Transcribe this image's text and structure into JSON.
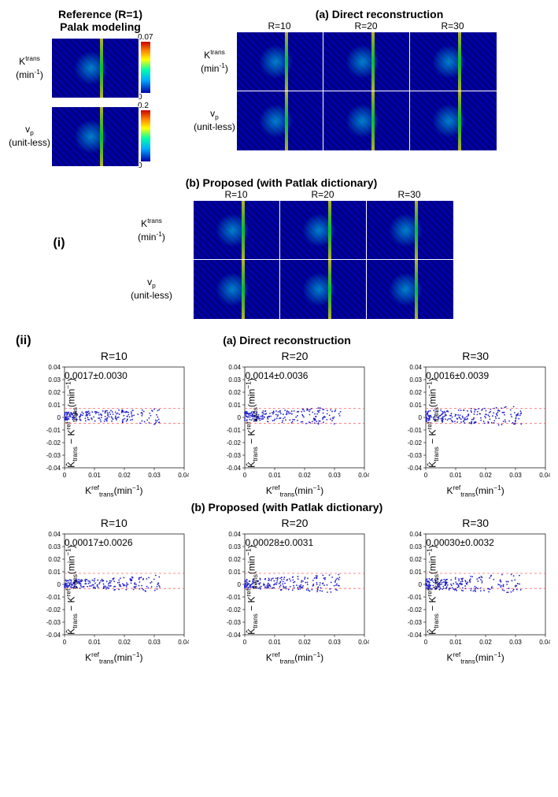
{
  "section_i": {
    "tag": "(i)",
    "reference": {
      "title_line1": "Reference (R=1)",
      "title_line2": "Palak modeling",
      "rows": [
        {
          "label_html": "K<sup>trans</sup><br>(min<sup>-1</sup>)",
          "colorbar": {
            "min": 0,
            "max": 0.07
          }
        },
        {
          "label_html": "v<sub>p</sub><br>(unit-less)",
          "colorbar": {
            "min": 0,
            "max": 0.2
          }
        }
      ]
    },
    "panels": [
      {
        "title": "(a) Direct reconstruction",
        "cols": [
          "R=10",
          "R=20",
          "R=30"
        ],
        "row_labels": [
          "K<sup>trans</sup><br>(min<sup>-1</sup>)",
          "v<sub>p</sub><br>(unit-less)"
        ]
      },
      {
        "title": "(b) Proposed (with Patlak dictionary)",
        "cols": [
          "R=10",
          "R=20",
          "R=30"
        ],
        "row_labels": [
          "K<sup>trans</sup><br>(min<sup>-1</sup>)",
          "v<sub>p</sub><br>(unit-less)"
        ]
      }
    ]
  },
  "section_ii": {
    "tag": "(ii)",
    "groups": [
      {
        "title": "(a) Direct reconstruction",
        "plots": [
          {
            "subtitle": "R=10",
            "stat": "0.0017±0.0030"
          },
          {
            "subtitle": "R=20",
            "stat": "0.0014±0.0036"
          },
          {
            "subtitle": "R=30",
            "stat": "0.0016±0.0039"
          }
        ]
      },
      {
        "title": "(b) Proposed (with Patlak dictionary)",
        "plots": [
          {
            "subtitle": "R=10",
            "stat": "0.00017±0.0026"
          },
          {
            "subtitle": "R=20",
            "stat": "0.00028±0.0031"
          },
          {
            "subtitle": "R=30",
            "stat": "0.00030±0.0032"
          }
        ]
      }
    ],
    "axis": {
      "x_ticks": [
        0,
        0.01,
        0.02,
        0.03,
        0.04
      ],
      "y_ticks": [
        -0.04,
        -0.03,
        -0.02,
        -0.01,
        0,
        0.01,
        0.02,
        0.03,
        0.04
      ],
      "xlim": [
        0,
        0.04
      ],
      "ylim": [
        -0.04,
        0.04
      ],
      "xlabel_html": "K<sup>ref</sup><sub>trans</sub>(min<sup>−1</sup>)",
      "ylabel_html": "K̂<sub>trans</sub> − K<sup>ref</sup><sub>trans</sub>(min<sup>−1</sup>)",
      "dash_color": "#ff6666",
      "point_color": "#2020cc",
      "dash_y_upper_frac": 0.41,
      "dash_y_lower_frac": 0.56
    }
  }
}
